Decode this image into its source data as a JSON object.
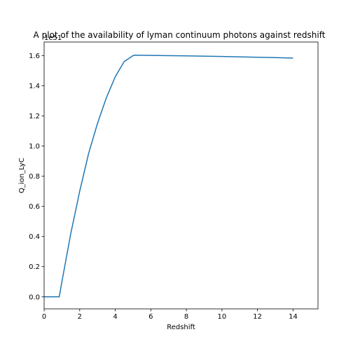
{
  "chart_data": {
    "type": "line",
    "title": "A plot of the availability of lyman continuum photons against redshift",
    "xlabel": "Redshift",
    "ylabel": "Q_ion_LyC",
    "offset_label": "1e51",
    "xlim": [
      0,
      15.4
    ],
    "ylim": [
      -0.08,
      1.69
    ],
    "xticks": [
      0,
      2,
      4,
      6,
      8,
      10,
      12,
      14
    ],
    "yticks": [
      0.0,
      0.2,
      0.4,
      0.6,
      0.8,
      1.0,
      1.2,
      1.4,
      1.6
    ],
    "ytick_labels": [
      "0.0",
      "0.2",
      "0.4",
      "0.6",
      "0.8",
      "1.0",
      "1.2",
      "1.4",
      "1.6"
    ],
    "grid": false,
    "series": [
      {
        "color": "#1f77b4",
        "x": [
          0,
          0.85,
          1.0,
          1.5,
          2.0,
          2.5,
          3.0,
          3.5,
          4.0,
          4.5,
          5.0,
          5.1,
          6,
          8,
          10,
          12,
          14
        ],
        "y": [
          0.0,
          0.0,
          0.1,
          0.42,
          0.7,
          0.95,
          1.15,
          1.32,
          1.46,
          1.56,
          1.6,
          1.603,
          1.601,
          1.598,
          1.594,
          1.589,
          1.584
        ]
      }
    ]
  }
}
